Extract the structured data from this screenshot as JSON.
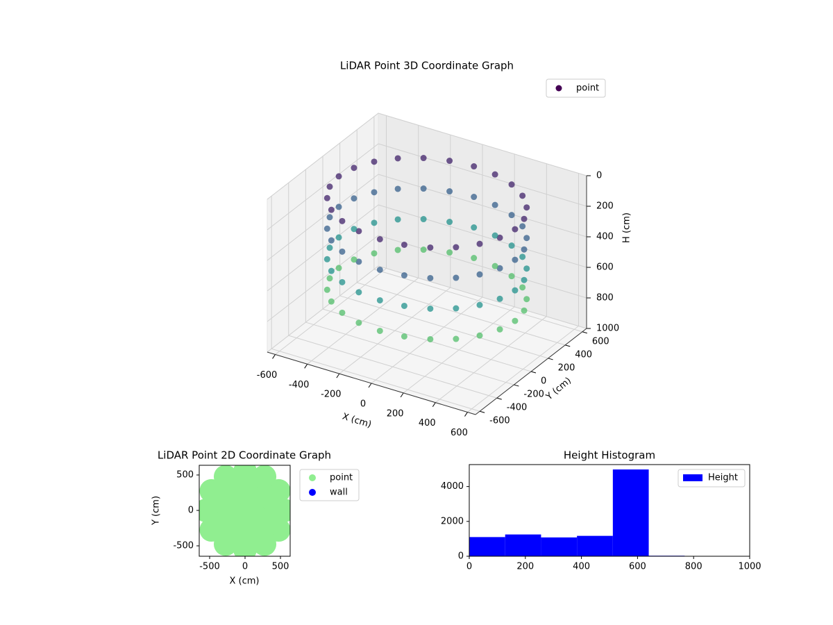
{
  "chart_data": [
    {
      "type": "scatter3d",
      "title": "LiDAR Point 3D Coordinate Graph",
      "x_label": "X (cm)",
      "y_label": "Y (cm)",
      "z_label": "H (cm)",
      "xlim": [
        -650,
        650
      ],
      "ylim": [
        -650,
        650
      ],
      "zlim": [
        1000,
        0
      ],
      "xticks": [
        -600,
        -400,
        -200,
        0,
        200,
        400,
        600
      ],
      "yticks": [
        -600,
        -400,
        -200,
        0,
        200,
        400,
        600
      ],
      "zticks": [
        0,
        200,
        400,
        600,
        800,
        1000
      ],
      "colormap": "viridis",
      "grid": true,
      "legend": "upper right",
      "series": [
        {
          "name": "point",
          "color": "#440154",
          "x": [
            550,
            531,
            476,
            389,
            275,
            142,
            0,
            -142,
            -275,
            -389,
            -476,
            -531,
            -550,
            -531,
            -476,
            -389,
            -275,
            -142,
            0,
            142,
            275,
            389,
            476,
            531,
            550,
            531,
            476,
            389,
            275,
            142,
            0,
            -142,
            -275,
            -389,
            -476,
            -531,
            -550,
            -531,
            -476,
            -389,
            -275,
            -142,
            0,
            142,
            275,
            389,
            476,
            531,
            550,
            531,
            476,
            389,
            275,
            142,
            0,
            -142,
            -275,
            -389,
            -476,
            -531,
            -550,
            -531,
            -476,
            -389,
            -275,
            -142,
            0,
            142,
            275,
            389,
            476,
            531,
            550,
            531,
            476,
            389,
            275,
            142,
            0,
            -142,
            -275,
            -389,
            -476,
            -531,
            -550,
            -531,
            -476,
            -389,
            -275,
            -142,
            0,
            142,
            275,
            389,
            476,
            531
          ],
          "y": [
            0,
            142,
            275,
            389,
            476,
            531,
            550,
            531,
            476,
            389,
            275,
            142,
            0,
            -142,
            -275,
            -389,
            -476,
            -531,
            -550,
            -531,
            -476,
            -389,
            -275,
            -142,
            0,
            142,
            275,
            389,
            476,
            531,
            550,
            531,
            476,
            389,
            275,
            142,
            0,
            -142,
            -275,
            -389,
            -476,
            -531,
            -550,
            -531,
            -476,
            -389,
            -275,
            -142,
            0,
            142,
            275,
            389,
            476,
            531,
            550,
            531,
            476,
            389,
            275,
            142,
            0,
            -142,
            -275,
            -389,
            -476,
            -531,
            -550,
            -531,
            -476,
            -389,
            -275,
            -142,
            0,
            142,
            275,
            389,
            476,
            531,
            550,
            531,
            476,
            389,
            275,
            142,
            0,
            -142,
            -275,
            -389,
            -476,
            -531,
            -550,
            -531,
            -476,
            -389,
            -275,
            -142
          ],
          "z": [
            100,
            100,
            100,
            100,
            100,
            100,
            100,
            100,
            100,
            100,
            100,
            100,
            100,
            100,
            100,
            100,
            100,
            100,
            100,
            100,
            100,
            100,
            100,
            100,
            300,
            300,
            300,
            300,
            300,
            300,
            300,
            300,
            300,
            300,
            300,
            300,
            300,
            300,
            300,
            300,
            300,
            300,
            300,
            300,
            300,
            300,
            300,
            300,
            500,
            500,
            500,
            500,
            500,
            500,
            500,
            500,
            500,
            500,
            500,
            500,
            500,
            500,
            500,
            500,
            500,
            500,
            500,
            500,
            500,
            500,
            500,
            500,
            700,
            700,
            700,
            700,
            700,
            700,
            700,
            700,
            700,
            700,
            700,
            700,
            700,
            700,
            700,
            700,
            700,
            700,
            700,
            700,
            700,
            700,
            700,
            700
          ]
        }
      ]
    },
    {
      "type": "scatter",
      "title": "LiDAR Point 2D Coordinate Graph",
      "x_label": "X (cm)",
      "y_label": "Y (cm)",
      "xlim": [
        -647,
        637
      ],
      "ylim": [
        -647,
        637
      ],
      "xticks": [
        -500,
        0,
        500
      ],
      "yticks": [
        -500,
        0,
        500
      ],
      "legend": "outside right",
      "series": [
        {
          "name": "point",
          "color": "#90ee90",
          "x": [
            550,
            476,
            275,
            0,
            -275,
            -476,
            -550,
            -476,
            -275,
            0,
            275,
            476,
            380,
            329,
            190,
            0,
            -190,
            -329,
            -380,
            -329,
            -190,
            0,
            190,
            329,
            200,
            173,
            100,
            0,
            -100,
            -173,
            -200,
            -173,
            -100,
            0,
            100,
            173,
            0
          ],
          "y": [
            0,
            275,
            476,
            550,
            476,
            275,
            0,
            -275,
            -476,
            -550,
            -476,
            -275,
            0,
            190,
            329,
            380,
            329,
            190,
            0,
            -190,
            -329,
            -380,
            -329,
            -190,
            0,
            100,
            173,
            200,
            173,
            100,
            0,
            -100,
            -173,
            -200,
            -173,
            -100,
            0
          ]
        },
        {
          "name": "wall",
          "color": "#0000ff",
          "x": [],
          "y": []
        }
      ]
    },
    {
      "type": "histogram",
      "title": "Height Histogram",
      "xlim": [
        0,
        1000
      ],
      "ylim": [
        0,
        5260
      ],
      "xticks": [
        0,
        200,
        400,
        600,
        800,
        1000
      ],
      "yticks": [
        0,
        2000,
        4000
      ],
      "legend": "upper right",
      "series": [
        {
          "name": "Height",
          "color": "#0000ff",
          "bins": [
            0,
            128,
            256,
            384,
            512,
            640,
            768,
            896,
            1024
          ],
          "values": [
            1100,
            1250,
            1080,
            1170,
            4980,
            30,
            5,
            3
          ]
        }
      ]
    }
  ]
}
